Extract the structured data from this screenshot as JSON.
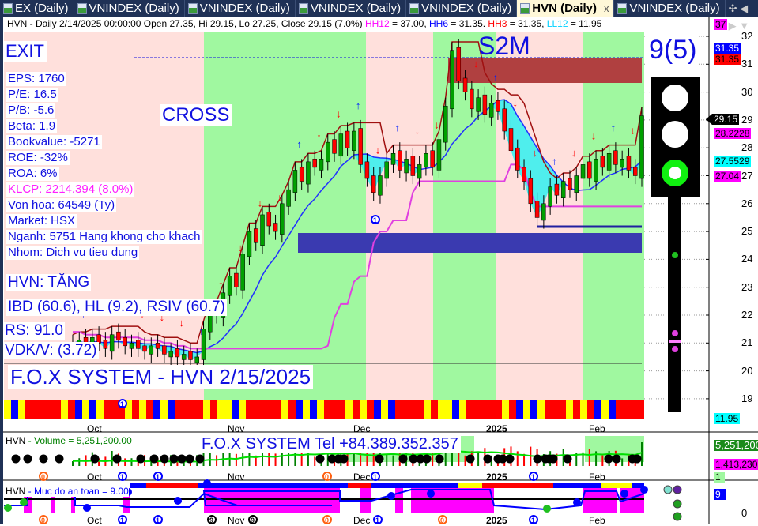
{
  "tabs": [
    {
      "label": "EX (Daily)",
      "active": false
    },
    {
      "label": "VNINDEX (Daily)",
      "active": false
    },
    {
      "label": "VNINDEX (Daily)",
      "active": false
    },
    {
      "label": "VNINDEX (Daily)",
      "active": false
    },
    {
      "label": "VNINDEX (Daily)",
      "active": false
    },
    {
      "label": "HVN (Daily)",
      "active": true,
      "close": "x"
    },
    {
      "label": "VNINDEX (Daily)",
      "active": false
    }
  ],
  "header": {
    "base": "HVN - Daily 2/14/2025 00:00:00 Open 27.35, Hi 29.15, Lo 27.25, Close 29.15 (7.0%) ",
    "hh12_label": "HH12",
    "hh12_value": " = 37.00, ",
    "hh6_label": "HH6",
    "hh6_value": " = 31.35. ",
    "hh3_label": "HH3",
    "hh3_value": " = 31.35, ",
    "ll12_label": "LL12",
    "ll12_value": " = 11.95"
  },
  "info": {
    "exit": "EXIT",
    "cross": "CROSS",
    "s2m": "S2M",
    "score": "9(5)",
    "eps": "EPS: 1760",
    "pe": "P/E: 16.5",
    "pb": "P/B: -5.6",
    "beta": "Beta: 1.9",
    "bookvalue": "Bookvalue: -5271",
    "roe": "ROE: -32%",
    "roa": "ROA: 6%",
    "klcp": "KLCP: 2214.394 (8.0%)",
    "vonhoa": "Von hoa: 64549 (Ty)",
    "market": "Market: HSX",
    "nganh": "Nganh: 5751 Hang khong cho khach",
    "nhom": "Nhom: Dich vu tieu dung",
    "trend": "HVN: TĂNG",
    "ibd": "IBD (60.6), HL (9.2), RSIV (60.7)",
    "rs": "RS: 91.0",
    "vdkv": "VDK/V:  (3.72)",
    "fox": "F.O.X SYSTEM - HVN 2/15/2025",
    "fox_tel": "F.O.X SYSTEM Tel +84.389.352.357"
  },
  "price_axis": {
    "ticks": [
      "32",
      "31",
      "30",
      "29",
      "28",
      "27",
      "26",
      "25",
      "24",
      "23",
      "22",
      "21",
      "20",
      "19"
    ],
    "tags": [
      {
        "text": "37",
        "bg": "#ff00ff",
        "fg": "#000"
      },
      {
        "text": "31.35",
        "bg": "#0000ff",
        "fg": "#fff"
      },
      {
        "text": "31.35",
        "bg": "#ff0000",
        "fg": "#000"
      },
      {
        "text": "29.15",
        "bg": "#000000",
        "fg": "#fff"
      },
      {
        "text": "28.2228",
        "bg": "#ff00ff",
        "fg": "#000"
      },
      {
        "text": "27.5529",
        "bg": "#00ffff",
        "fg": "#000"
      },
      {
        "text": "27.04",
        "bg": "#ff00ff",
        "fg": "#000"
      },
      {
        "text": "11.95",
        "bg": "#00ffff",
        "fg": "#000"
      }
    ]
  },
  "months": [
    "Oct",
    "Nov",
    "Dec",
    "2025",
    "Feb"
  ],
  "volume": {
    "label": "HVN",
    "title": " - Volume = 5,251,200.00",
    "tag_last": "5,251,200",
    "tag_avg": "1,413,230",
    "tag_small": "1"
  },
  "safety": {
    "label": "HVN",
    "title": " - Muc do an toan = 9.00",
    "tag": "9",
    "axis_zero": "0"
  },
  "colors": {
    "up": "#00a000",
    "down": "#ff0000",
    "green_band": "#a0f8a0",
    "pink_band": "#ffe0dc",
    "accent": "#1010e0"
  },
  "chart_data": {
    "type": "candlestick",
    "ylim": [
      18.5,
      32.5
    ],
    "closes": [
      21.0,
      21.1,
      20.9,
      21.2,
      21.0,
      20.8,
      21.3,
      21.1,
      20.9,
      21.0,
      20.8,
      20.7,
      20.9,
      20.8,
      20.6,
      20.7,
      20.5,
      20.6,
      20.4,
      20.5,
      21.5,
      22.2,
      22.0,
      22.8,
      23.4,
      23.0,
      24.2,
      25.0,
      24.6,
      25.6,
      25.2,
      25.0,
      26.0,
      26.5,
      27.2,
      26.8,
      27.5,
      27.3,
      27.6,
      28.2,
      27.8,
      28.5,
      28.0,
      28.6,
      27.4,
      26.9,
      26.4,
      27.0,
      27.5,
      27.8,
      27.2,
      27.6,
      27.0,
      27.4,
      27.8,
      27.3,
      28.3,
      29.5,
      31.5,
      30.4,
      30.0,
      29.4,
      29.8,
      29.2,
      29.6,
      29.3,
      28.6,
      27.9,
      27.2,
      26.8,
      26.0,
      25.5,
      26.0,
      26.6,
      26.3,
      26.8,
      26.5,
      27.0,
      27.4,
      26.9,
      27.6,
      27.3,
      27.8,
      27.4,
      27.6,
      27.2,
      27.0,
      29.15
    ]
  }
}
